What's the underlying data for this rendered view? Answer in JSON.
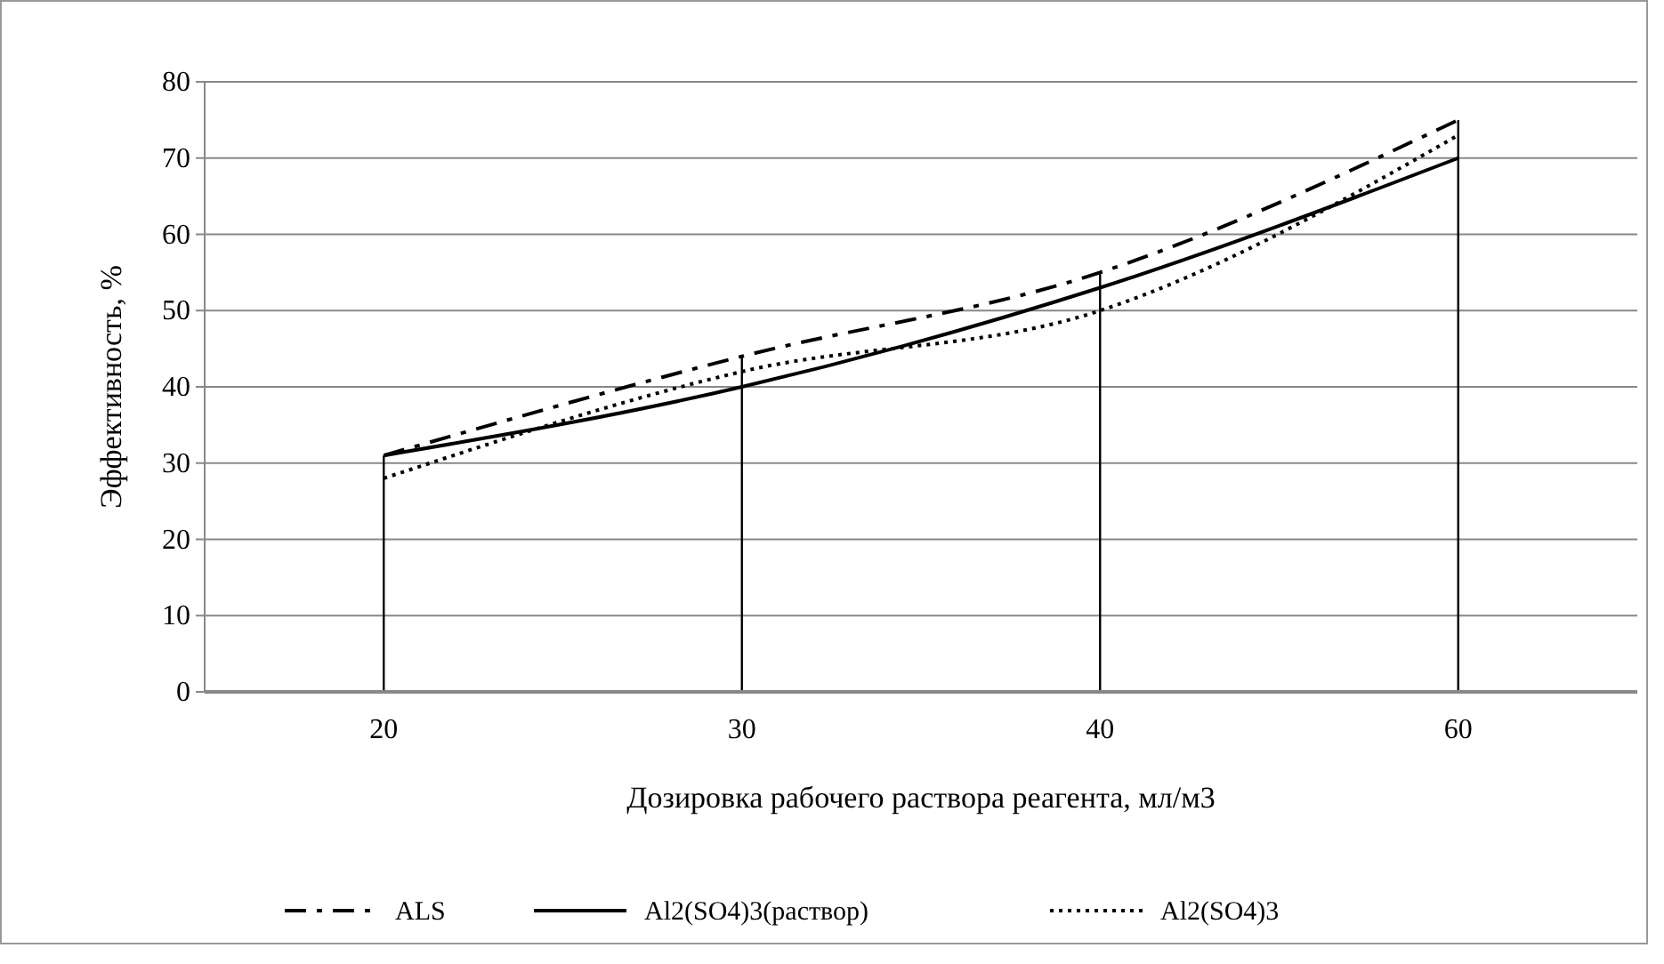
{
  "chart_data": {
    "type": "line",
    "xlabel": "Дозировка рабочего раствора реагента, мл/м3",
    "ylabel": "Эффективность, %",
    "categories": [
      "20",
      "30",
      "40",
      "60"
    ],
    "series": [
      {
        "name": "ALS",
        "color": "#000000",
        "line_style": "dashed",
        "values": [
          31,
          44,
          55,
          75
        ]
      },
      {
        "name": "Al2(SO4)3(раствор)",
        "color": "#000000",
        "line_style": "solid",
        "values": [
          31,
          40,
          53,
          70
        ]
      },
      {
        "name": "Al2(SO4)3",
        "color": "#000000",
        "line_style": "dotted",
        "values": [
          28,
          42,
          50,
          73
        ]
      }
    ],
    "ylim": [
      0,
      80
    ],
    "yticks": [
      0,
      10,
      20,
      30,
      40,
      50,
      60,
      70,
      80
    ],
    "grid": "y",
    "legend": "bottom",
    "marker": "none",
    "ref_lines": [
      {
        "axis": "x",
        "value": "20",
        "color": "#000000"
      },
      {
        "axis": "x",
        "value": "30",
        "color": "#000000"
      },
      {
        "axis": "x",
        "value": "40",
        "color": "#000000"
      },
      {
        "axis": "x",
        "value": "60",
        "color": "#000000"
      }
    ]
  }
}
